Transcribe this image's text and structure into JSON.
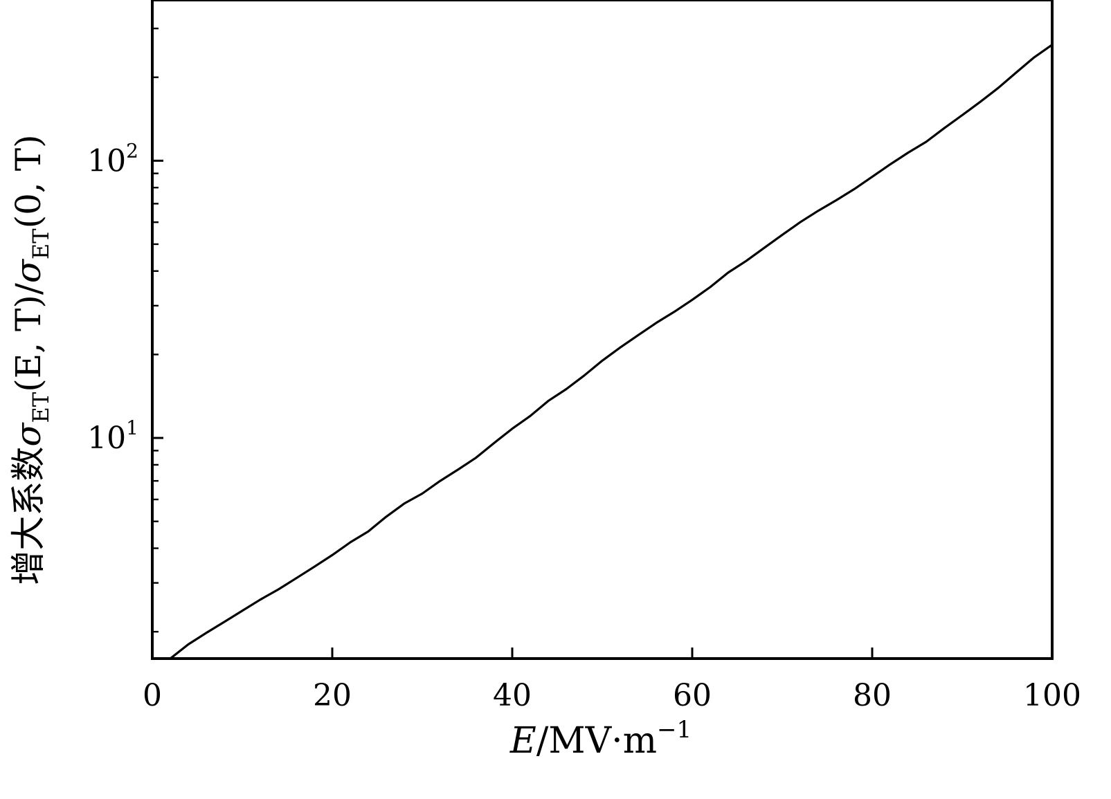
{
  "chart_data": {
    "type": "line",
    "xlabel": {
      "symbol": "E",
      "unit": "/MV·m",
      "exponent": "−1"
    },
    "ylabel": {
      "prefix": "增大系数",
      "sigma": "σ",
      "sub": "ET",
      "arg1": "(E, T)",
      "slash": "/",
      "sub2": "ET",
      "arg2": "(0, T)"
    },
    "xlim": [
      0,
      100
    ],
    "ylim": [
      1.6,
      380
    ],
    "yscale": "log",
    "grid": false,
    "x_ticks": [
      "0",
      "20",
      "40",
      "60",
      "80",
      "100"
    ],
    "y_ticks": [
      {
        "base": "10",
        "exp": "1",
        "value": 10
      },
      {
        "base": "10",
        "exp": "2",
        "value": 100
      }
    ],
    "series": [
      {
        "x": [
          2,
          4,
          6,
          8,
          10,
          12,
          14,
          16,
          18,
          20,
          22,
          24,
          26,
          28,
          30,
          32,
          34,
          36,
          38,
          40,
          42,
          44,
          46,
          48,
          50,
          52,
          54,
          56,
          58,
          60,
          62,
          64,
          66,
          68,
          70,
          72,
          74,
          76,
          78,
          80,
          82,
          84,
          86,
          88,
          90,
          92,
          94,
          96,
          98,
          100
        ],
        "y": [
          1.6,
          1.8,
          1.98,
          2.17,
          2.38,
          2.61,
          2.84,
          3.12,
          3.43,
          3.78,
          4.2,
          4.6,
          5.2,
          5.8,
          6.3,
          7.0,
          7.7,
          8.5,
          9.6,
          10.8,
          12.0,
          13.6,
          15.0,
          16.8,
          19.0,
          21.2,
          23.5,
          26.0,
          28.5,
          31.5,
          35.0,
          39.5,
          43.5,
          48.5,
          54.0,
          60.0,
          66.0,
          72.0,
          79.0,
          87.5,
          97.0,
          107.0,
          117.0,
          131.0,
          146.0,
          163.0,
          183.0,
          208.0,
          236.0,
          262.0
        ]
      }
    ]
  },
  "colors": {
    "line": "#000000",
    "axis": "#000000",
    "background": "#ffffff"
  }
}
